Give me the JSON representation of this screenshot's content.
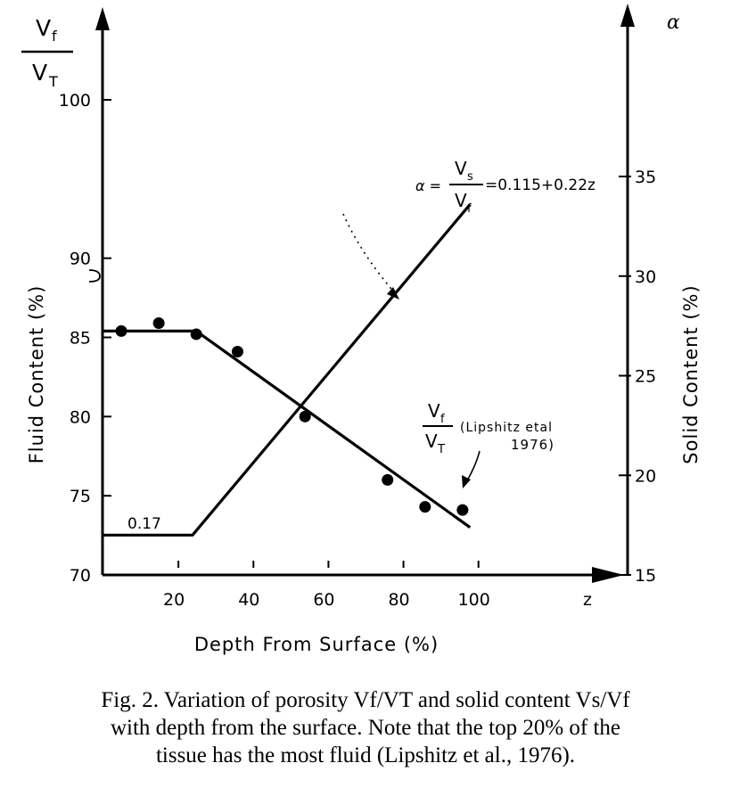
{
  "chart_data": {
    "type": "line",
    "x_axis": {
      "label": "Depth From Surface (%)",
      "range": [
        0,
        140
      ],
      "ticks": [
        20,
        40,
        60,
        80,
        100
      ],
      "extra_label": "z"
    },
    "y_left": {
      "label": "Fluid Content (%)",
      "fraction_label": {
        "num": "V",
        "num_sub": "f",
        "den": "V",
        "den_sub": "T"
      },
      "range": [
        70,
        100
      ],
      "ticks": [
        70,
        75,
        80,
        85,
        90,
        100
      ]
    },
    "y_right": {
      "label": "Solid Content (%)",
      "symbol": "α",
      "range": [
        15,
        35
      ],
      "ticks": [
        15,
        20,
        25,
        30,
        35
      ]
    },
    "series": [
      {
        "name": "Vf/VT (Lipshitz et al 1976)",
        "axis": "left",
        "style": "line",
        "x": [
          0,
          25,
          98
        ],
        "y": [
          85.4,
          85.4,
          73.0
        ]
      },
      {
        "name": "Lipshitz et al 1976 data",
        "axis": "left",
        "style": "points",
        "x": [
          5,
          15,
          25,
          36,
          54,
          76,
          86,
          96
        ],
        "y": [
          85.4,
          85.9,
          85.2,
          84.1,
          80.0,
          76.0,
          74.3,
          74.1
        ]
      },
      {
        "name": "α = Vs/Vf",
        "axis": "right",
        "style": "line",
        "x": [
          0,
          24,
          98
        ],
        "y": [
          17.0,
          17.0,
          33.6
        ]
      }
    ],
    "annotations": {
      "alpha_eq": {
        "lhs": "α =",
        "num": "V",
        "num_sub": "s",
        "den": "V",
        "den_sub": "f",
        "rhs": "=0.115+0.22z"
      },
      "baseline": "0.17",
      "lipshitz": {
        "num": "V",
        "num_sub": "f",
        "den": "V",
        "den_sub": "T",
        "cite1": "(Lipshitz etal",
        "cite2": "1976)"
      }
    }
  },
  "caption": {
    "line1": "Fig. 2. Variation of porosity Vf/VT and solid content Vs/Vf",
    "line2": "with depth from the surface. Note that the top 20% of the",
    "line3": "tissue has the most fluid (Lipshitz et al., 1976)."
  }
}
